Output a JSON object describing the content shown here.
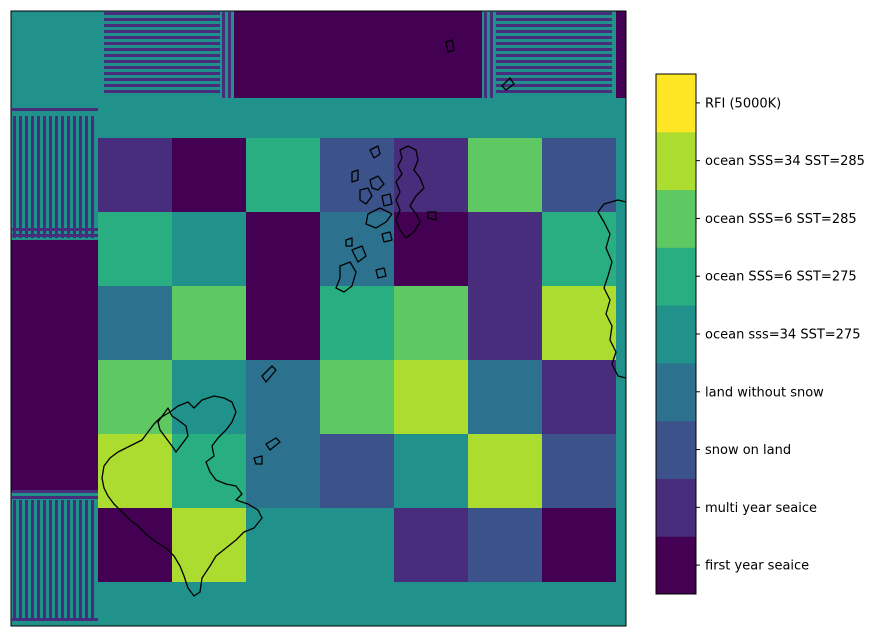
{
  "chart_data": {
    "type": "heatmap",
    "title": "",
    "xlabel": "",
    "ylabel": "",
    "grid": false,
    "colorbar": {
      "position": "right",
      "classes": [
        {
          "value": 0,
          "label": "first year seaice",
          "color": "#440154"
        },
        {
          "value": 1,
          "label": "multi year seaice",
          "color": "#472d7b"
        },
        {
          "value": 2,
          "label": "snow on land",
          "color": "#3b528b"
        },
        {
          "value": 3,
          "label": "land without snow",
          "color": "#2c728e"
        },
        {
          "value": 4,
          "label": "ocean sss=34 SST=275",
          "color": "#21918c"
        },
        {
          "value": 5,
          "label": "ocean SSS=6 SST=275",
          "color": "#28ae80"
        },
        {
          "value": 6,
          "label": "ocean SSS=6 SST=285",
          "color": "#5ec962"
        },
        {
          "value": 7,
          "label": "ocean SSS=34 SST=285",
          "color": "#addc30"
        },
        {
          "value": 8,
          "label": "RFI (5000K)",
          "color": "#fde725"
        }
      ]
    },
    "background_class": 4,
    "test_grid": [
      [
        1,
        0,
        5,
        2,
        1,
        6,
        2
      ],
      [
        5,
        4,
        0,
        3,
        0,
        1,
        5
      ],
      [
        3,
        6,
        0,
        5,
        6,
        1,
        7
      ],
      [
        6,
        4,
        3,
        6,
        7,
        3,
        1
      ],
      [
        7,
        5,
        3,
        2,
        4,
        7,
        2
      ],
      [
        0,
        7,
        4,
        4,
        1,
        2,
        0
      ]
    ],
    "border_regions": {
      "top_block_class": 0,
      "left_block_class": 0,
      "stripe_colors": [
        "#472d7b",
        "#21918c"
      ]
    },
    "overlay": "coastlines"
  }
}
